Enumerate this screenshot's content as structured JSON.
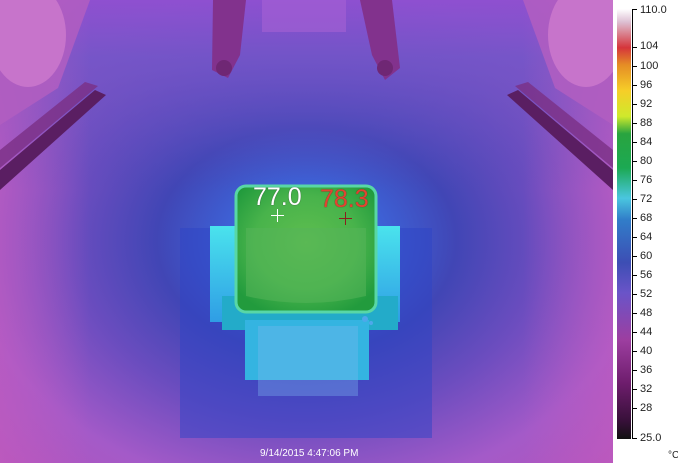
{
  "image": {
    "readings": [
      {
        "value": "77.0",
        "color": "#ffffff"
      },
      {
        "value": "78.3",
        "color": "#e24331"
      }
    ],
    "timestamp": "9/14/2015 4:47:06 PM"
  },
  "scale": {
    "unit": "°C",
    "labels": [
      "110.0",
      "104",
      "100",
      "96",
      "92",
      "88",
      "84",
      "80",
      "76",
      "72",
      "68",
      "64",
      "60",
      "56",
      "52",
      "48",
      "44",
      "40",
      "36",
      "32",
      "28",
      "25.0"
    ]
  }
}
